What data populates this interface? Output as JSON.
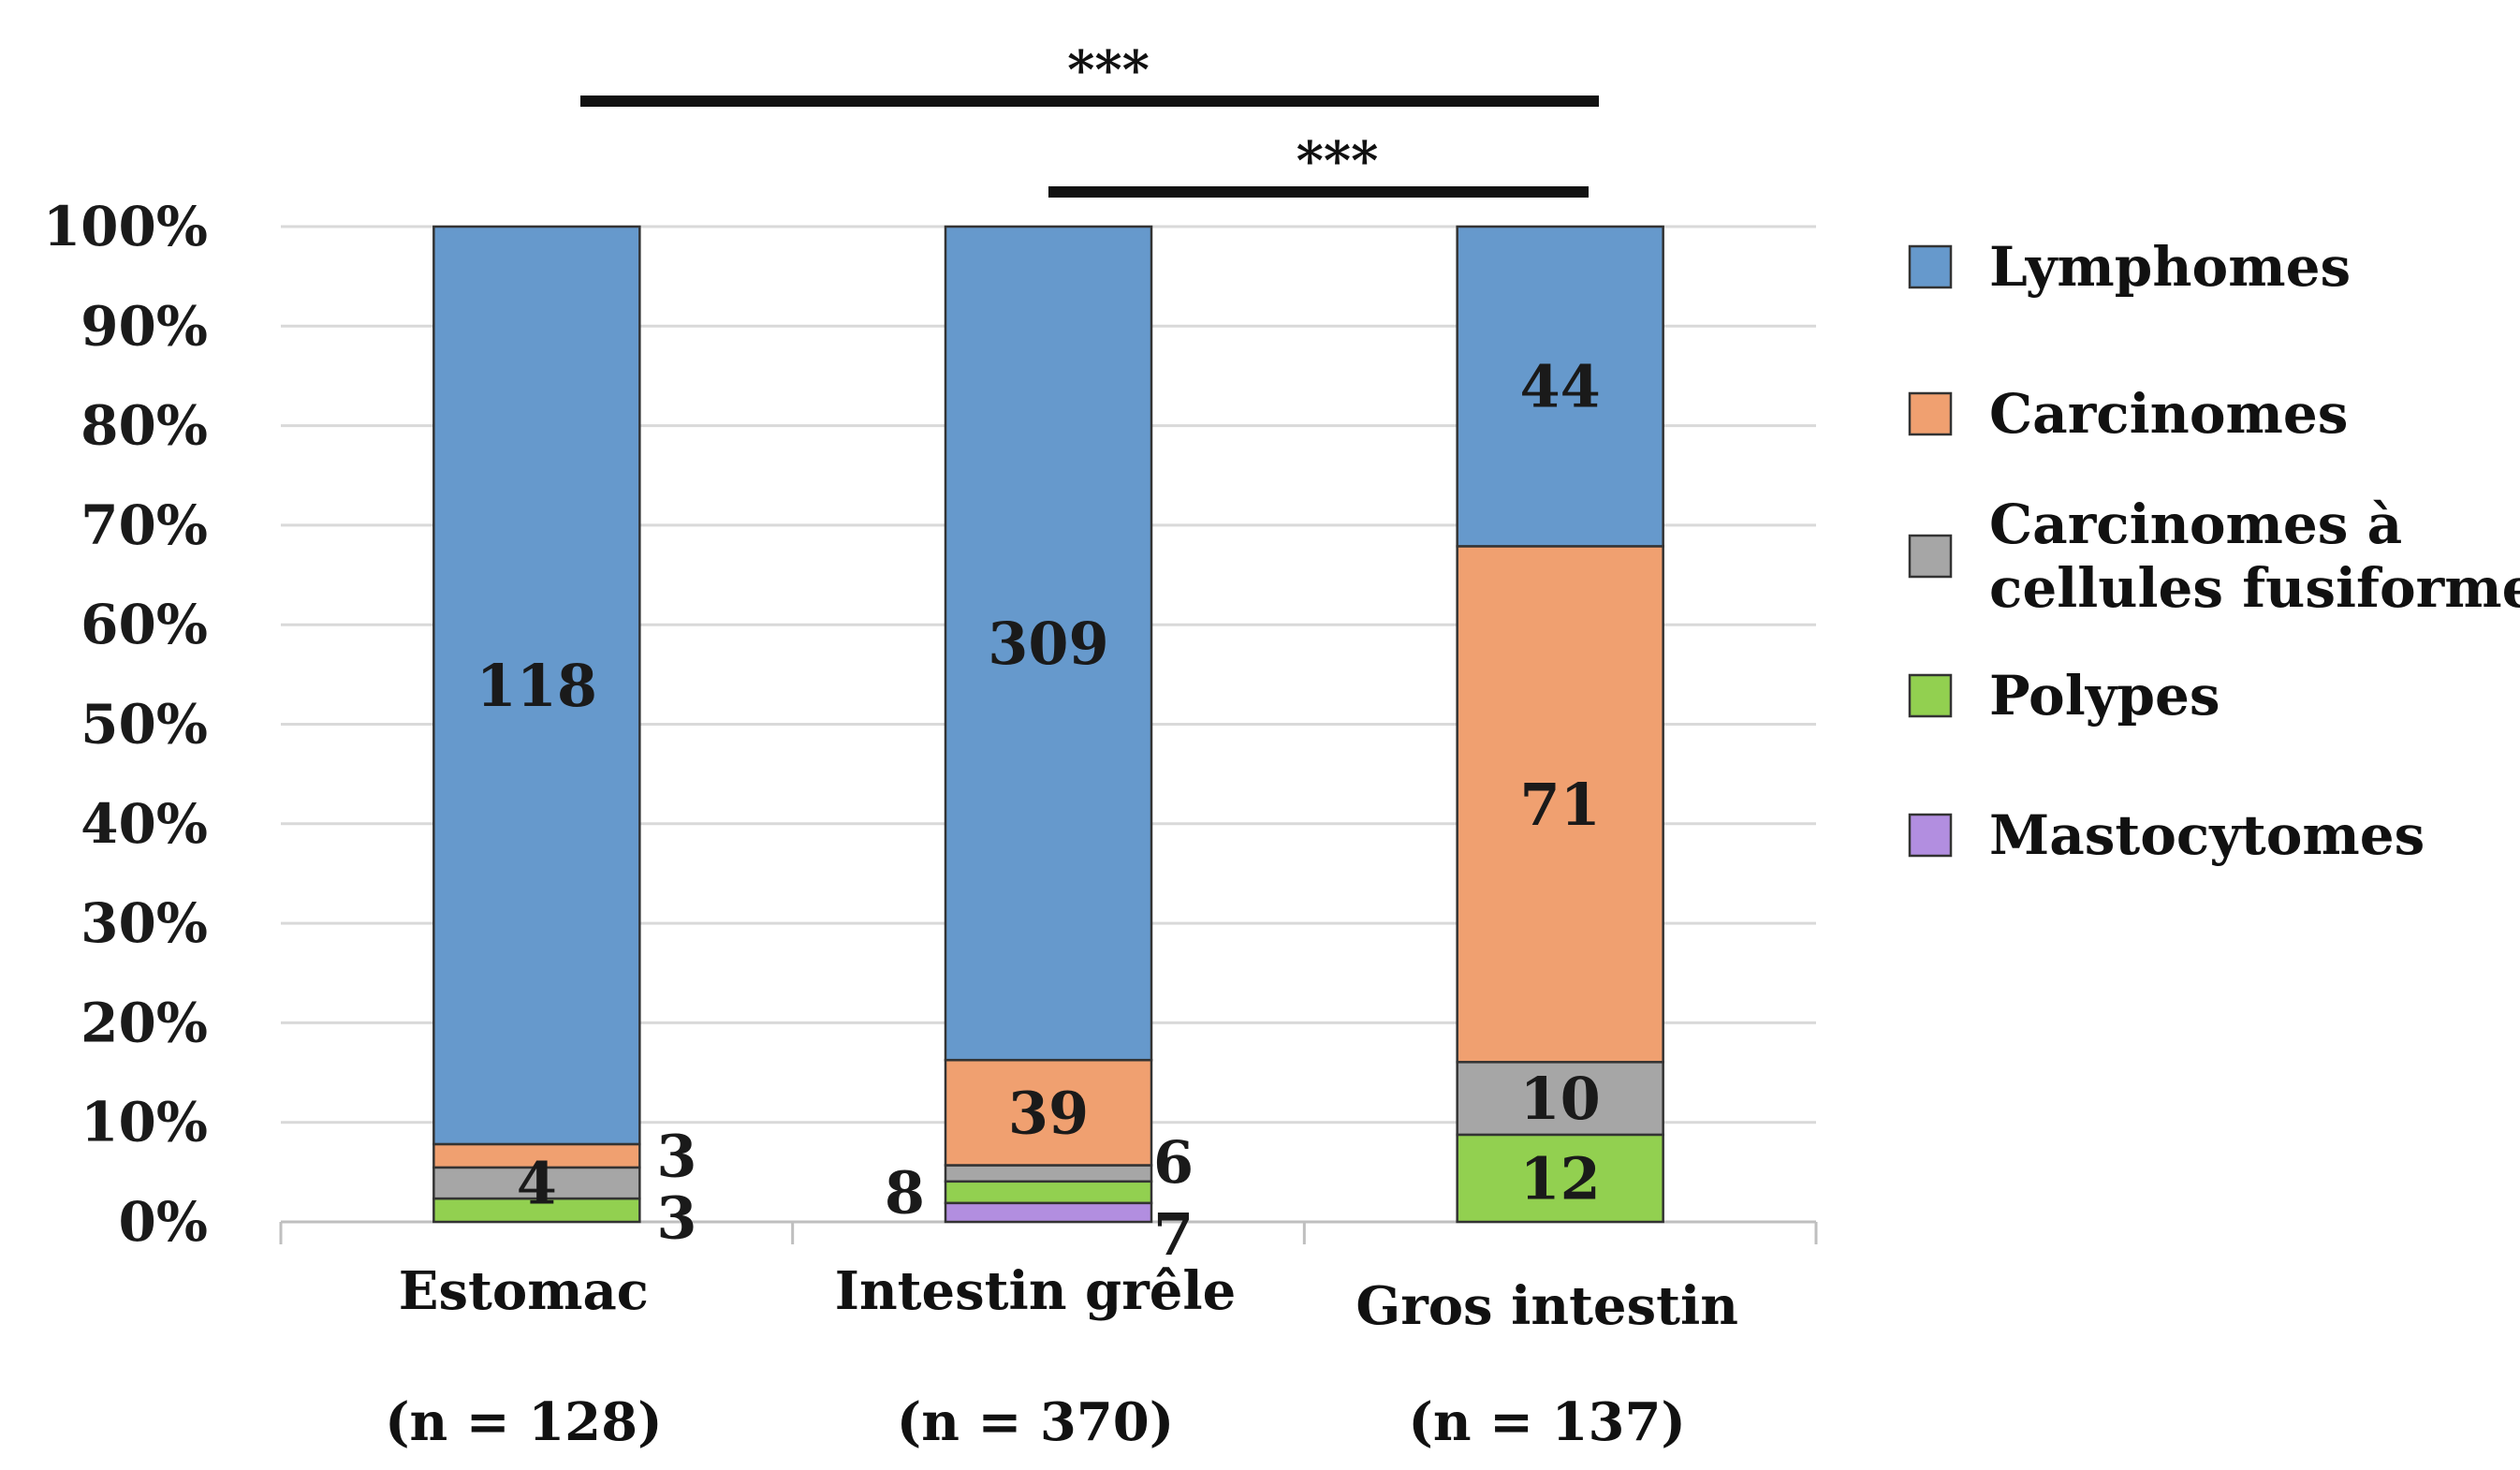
{
  "chart_data": {
    "type": "bar",
    "stacked": true,
    "normalized": true,
    "categories": [
      "Estomac",
      "Intestin grêle",
      "Gros intestin"
    ],
    "category_n": [
      "(n = 128)",
      "(n = 370)",
      "(n = 137)"
    ],
    "series": [
      {
        "name": "Mastocytomes",
        "values": [
          0,
          7,
          0
        ],
        "color": "#b28ee0"
      },
      {
        "name": "Polypes",
        "values": [
          3,
          8,
          12
        ],
        "color": "#92d050"
      },
      {
        "name": "Carcinomes à cellules fusiformes",
        "values": [
          4,
          6,
          10
        ],
        "color": "#a6a6a6"
      },
      {
        "name": "Carcinomes",
        "values": [
          3,
          39,
          71
        ],
        "color": "#f0a070"
      },
      {
        "name": "Lymphomes",
        "values": [
          118,
          309,
          44
        ],
        "color": "#6699cc"
      }
    ],
    "legend": [
      {
        "label_lines": [
          "Lymphomes"
        ],
        "color": "#6699cc"
      },
      {
        "label_lines": [
          "Carcinomes"
        ],
        "color": "#f0a070"
      },
      {
        "label_lines": [
          "Carcinomes à",
          "cellules fusiformes"
        ],
        "color": "#a6a6a6"
      },
      {
        "label_lines": [
          "Polypes"
        ],
        "color": "#92d050"
      },
      {
        "label_lines": [
          "Mastocytomes"
        ],
        "color": "#b28ee0"
      }
    ],
    "legend_position": "right",
    "yticks": [
      "0%",
      "10%",
      "20%",
      "30%",
      "40%",
      "50%",
      "60%",
      "70%",
      "80%",
      "90%",
      "100%"
    ],
    "ylim": [
      0,
      100
    ],
    "grid": true,
    "significance": [
      {
        "from": "Estomac",
        "to": "Gros intestin",
        "label": "***"
      },
      {
        "from": "Intestin grêle",
        "to": "Gros intestin",
        "label": "***"
      }
    ]
  }
}
